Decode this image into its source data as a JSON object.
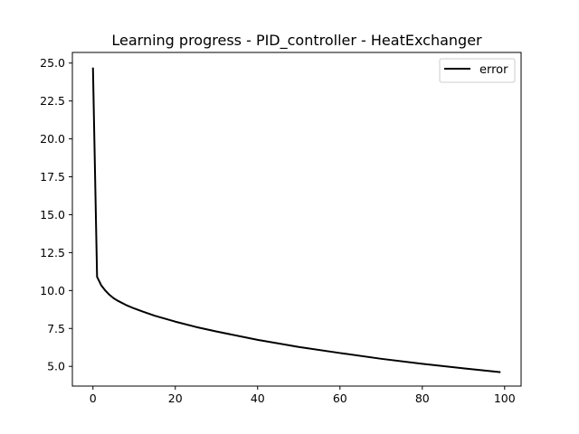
{
  "chart_data": {
    "type": "line",
    "title": "Learning progress - PID_controller - HeatExchanger",
    "xlabel": "",
    "ylabel": "",
    "xlim": [
      -5,
      104
    ],
    "ylim": [
      3.7,
      25.7
    ],
    "grid": false,
    "legend_position": "top-right",
    "x_ticks": [
      0,
      20,
      40,
      60,
      80,
      100
    ],
    "x_tick_labels": [
      "0",
      "20",
      "40",
      "60",
      "80",
      "100"
    ],
    "y_ticks": [
      5.0,
      7.5,
      10.0,
      12.5,
      15.0,
      17.5,
      20.0,
      22.5,
      25.0
    ],
    "y_tick_labels": [
      "5.0",
      "7.5",
      "10.0",
      "12.5",
      "15.0",
      "17.5",
      "20.0",
      "22.5",
      "25.0"
    ],
    "series": [
      {
        "name": "error",
        "color": "#000000",
        "x": [
          0,
          1,
          2,
          3,
          4,
          5,
          6,
          8,
          10,
          12,
          15,
          20,
          25,
          30,
          40,
          50,
          60,
          70,
          80,
          90,
          99
        ],
        "y": [
          24.7,
          10.9,
          10.35,
          10.0,
          9.72,
          9.5,
          9.33,
          9.05,
          8.82,
          8.62,
          8.34,
          7.95,
          7.6,
          7.3,
          6.75,
          6.28,
          5.88,
          5.5,
          5.17,
          4.87,
          4.62
        ]
      }
    ]
  }
}
